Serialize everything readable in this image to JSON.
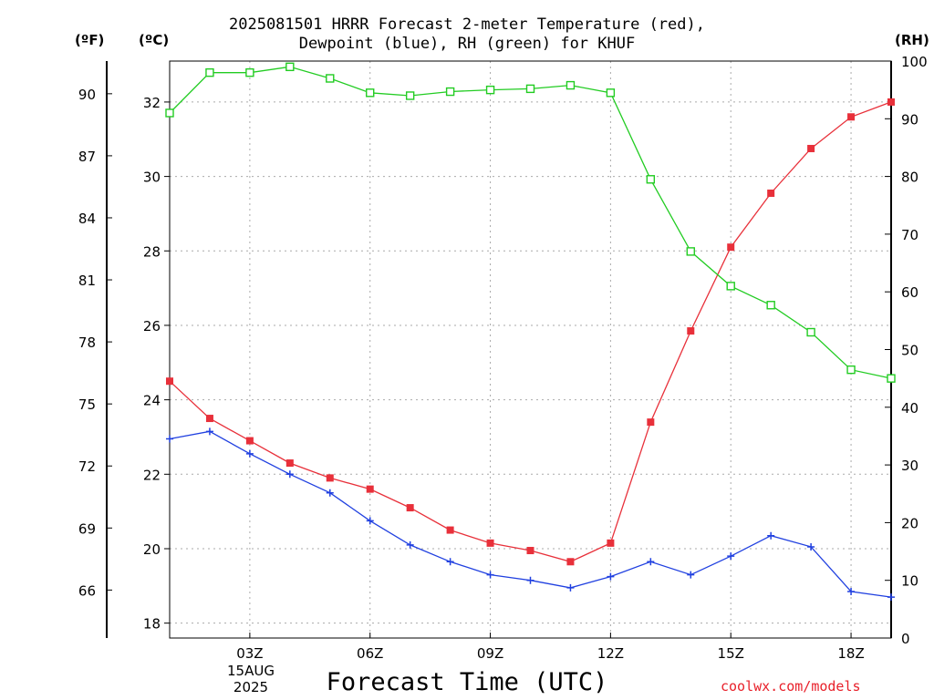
{
  "chart_data": {
    "type": "line",
    "title_line1": "2025081501 HRRR Forecast 2-meter Temperature (red),",
    "title_line2": "Dewpoint (blue), RH (green) for KHUF",
    "xlabel": "Forecast Time (UTC)",
    "left_unit_f": "(ºF)",
    "left_unit_c": "(ºC)",
    "right_unit": "(RH)",
    "date_label": [
      "15AUG",
      "2025"
    ],
    "watermark": "coolwx.com/models",
    "x_hours": [
      1,
      2,
      3,
      4,
      5,
      6,
      7,
      8,
      9,
      10,
      11,
      12,
      13,
      14,
      15,
      16,
      17,
      18,
      19
    ],
    "x_ticks": [
      {
        "hour": 3,
        "label": "03Z"
      },
      {
        "hour": 6,
        "label": "06Z"
      },
      {
        "hour": 9,
        "label": "09Z"
      },
      {
        "hour": 12,
        "label": "12Z"
      },
      {
        "hour": 15,
        "label": "15Z"
      },
      {
        "hour": 18,
        "label": "18Z"
      }
    ],
    "x_range": [
      1,
      19
    ],
    "celsius_range": [
      17.6,
      33.1
    ],
    "celsius_ticks": [
      18,
      20,
      22,
      24,
      26,
      28,
      30,
      32
    ],
    "fahrenheit_ticks": [
      66,
      69,
      72,
      75,
      78,
      81,
      84,
      87,
      90
    ],
    "rh_range": [
      0,
      100
    ],
    "rh_ticks": [
      0,
      10,
      20,
      30,
      40,
      50,
      60,
      70,
      80,
      90,
      100
    ],
    "grid": true,
    "series": [
      {
        "name": "Temperature",
        "axis": "celsius",
        "color": "#e8303a",
        "marker": "filled-square",
        "values": [
          24.5,
          23.5,
          22.9,
          22.3,
          21.9,
          21.6,
          21.1,
          20.5,
          20.15,
          19.95,
          19.65,
          20.15,
          23.4,
          25.85,
          28.1,
          29.55,
          30.75,
          31.6,
          32.0
        ]
      },
      {
        "name": "Dewpoint",
        "axis": "celsius",
        "color": "#2040e0",
        "marker": "plus",
        "values": [
          22.95,
          23.15,
          22.55,
          22.0,
          21.5,
          20.75,
          20.1,
          19.65,
          19.3,
          19.15,
          18.95,
          19.25,
          19.65,
          19.3,
          19.8,
          20.35,
          20.05,
          18.85,
          18.7
        ]
      },
      {
        "name": "RH",
        "axis": "rh",
        "color": "#22cc22",
        "marker": "open-square",
        "values": [
          91,
          98,
          98,
          99,
          97,
          94.5,
          94,
          94.7,
          95,
          95.2,
          95.8,
          94.5,
          79.5,
          67,
          61,
          57.7,
          53,
          46.5,
          45
        ]
      }
    ]
  }
}
